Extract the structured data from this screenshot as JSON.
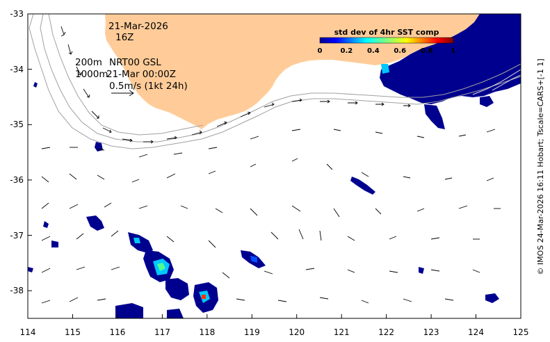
{
  "chart_data": {
    "type": "map",
    "title": "std dev of 4hr SST comp",
    "xlim": [
      114,
      125
    ],
    "ylim": [
      -38.5,
      -33
    ],
    "x_ticks": [
      "114",
      "115",
      "116",
      "117",
      "118",
      "119",
      "120",
      "121",
      "122",
      "123",
      "124",
      "125"
    ],
    "y_ticks": [
      "-33",
      "-34",
      "-35",
      "-36",
      "-37",
      "-38"
    ],
    "colorbar": {
      "title": "std dev of 4hr SST comp",
      "ticks": [
        "0",
        "0.2",
        "0.4",
        "0.6",
        "0.8",
        "1"
      ],
      "range": [
        0,
        1
      ]
    },
    "annotations": {
      "date": "21-Mar-2026",
      "hour": "16Z",
      "depth_top": "200m",
      "depth_bottom": "1000m",
      "product": "NRT00 GSL",
      "velocity_time": "21-Mar 00:00Z",
      "scale_label": "0.5m/s (1kt 24h)"
    },
    "credit": "© IMOS 24-Mar-2026 16:11 Hobart; Tscale=CARS+[-1 1]",
    "colors": {
      "land": "#ffcc99",
      "sst_low": "#00008f",
      "sst_mid": "#00c8ff",
      "sst_high": "#ff3000",
      "contour": "#a0a0a0",
      "arrow": "#000000"
    }
  }
}
